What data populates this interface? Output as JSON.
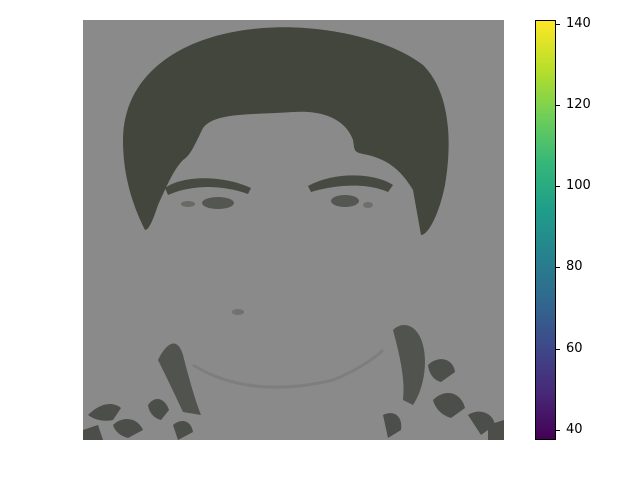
{
  "colorbar": {
    "colormap": "viridis",
    "range": [
      37,
      141
    ],
    "ticks": [
      "140",
      "120",
      "100",
      "80",
      "60",
      "40"
    ],
    "tick_values": [
      140,
      120,
      100,
      80,
      60,
      40
    ]
  },
  "image": {
    "description_icon": "grayscale-face-image",
    "background_color": "#8a8a8a",
    "hair_color": "#3e4239"
  }
}
